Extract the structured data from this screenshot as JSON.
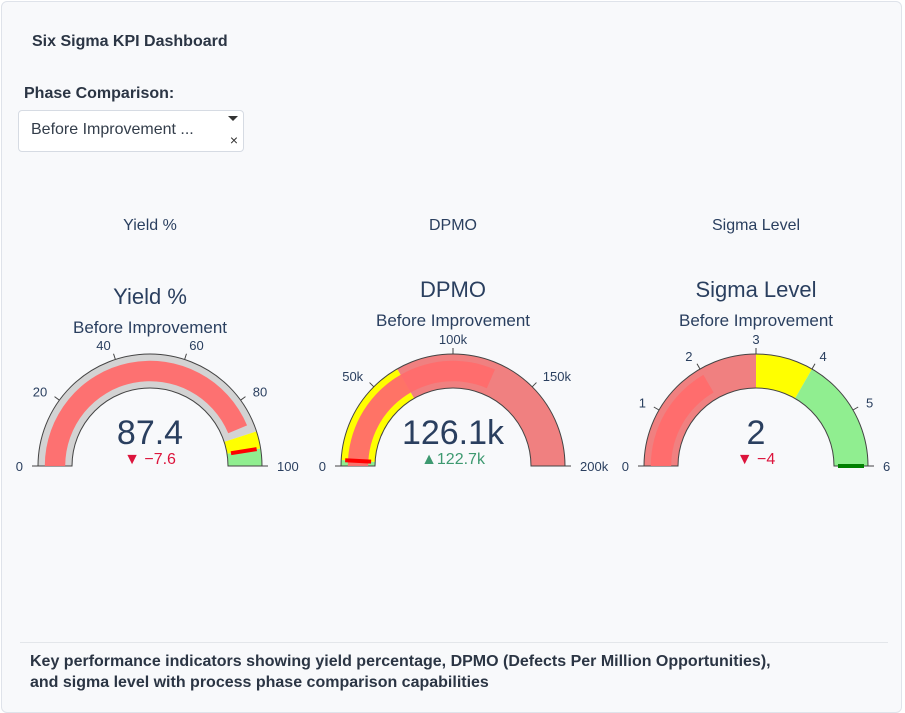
{
  "header": {
    "title": "Six Sigma KPI Dashboard"
  },
  "phase_selector": {
    "label": "Phase Comparison:",
    "selected": "Before Improvement ...",
    "caret_icon": "chevron-down-icon",
    "clear_icon": "×"
  },
  "caption": "Key performance indicators showing yield percentage, DPMO (Defects Per Million Opportunities), and sigma level with process phase comparison capabilities",
  "chart_data": {
    "type": "gauge",
    "subplot_titles": [
      "Yield %",
      "DPMO",
      "Sigma Level"
    ],
    "gauges": [
      {
        "title": "Yield %",
        "subtitle": "Before Improvement",
        "value": 87.4,
        "value_label": "87.4",
        "reference": 95,
        "delta": -7.6,
        "delta_label": "−7.6",
        "delta_direction": "down",
        "range": [
          0,
          100
        ],
        "ticks": [
          0,
          20,
          40,
          60,
          80,
          100
        ],
        "tick_labels": [
          "0",
          "20",
          "40",
          "60",
          "80",
          "100"
        ],
        "bar_color": "#ff6b6b",
        "steps": [
          {
            "range": [
              0,
              90
            ],
            "color": "#d3d3d3"
          },
          {
            "range": [
              90,
              95
            ],
            "color": "#ffff00"
          },
          {
            "range": [
              95,
              100
            ],
            "color": "#90ee90"
          }
        ],
        "threshold": {
          "value": 95,
          "color": "#ff0000"
        }
      },
      {
        "title": "DPMO",
        "subtitle": "Before Improvement",
        "value": 126100,
        "value_label": "126.1k",
        "reference": 3400,
        "delta": 122700,
        "delta_label": "122.7k",
        "delta_direction": "up",
        "range": [
          0,
          200000
        ],
        "ticks": [
          0,
          50000,
          100000,
          150000,
          200000
        ],
        "tick_labels": [
          "0",
          "50k",
          "100k",
          "150k",
          "200k"
        ],
        "bar_color": "#ff6b6b",
        "steps": [
          {
            "range": [
              0,
              3400
            ],
            "color": "#90ee90"
          },
          {
            "range": [
              3400,
              66800
            ],
            "color": "#ffff00"
          },
          {
            "range": [
              66800,
              200000
            ],
            "color": "#f08080"
          }
        ],
        "threshold": {
          "value": 3400,
          "color": "#ff0000"
        }
      },
      {
        "title": "Sigma Level",
        "subtitle": "Before Improvement",
        "value": 2,
        "value_label": "2",
        "reference": 6,
        "delta": -4,
        "delta_label": "−4",
        "delta_direction": "down",
        "range": [
          0,
          6
        ],
        "ticks": [
          0,
          1,
          2,
          3,
          4,
          5,
          6
        ],
        "tick_labels": [
          "0",
          "1",
          "2",
          "3",
          "4",
          "5",
          "6"
        ],
        "bar_color": "#ff6b6b",
        "steps": [
          {
            "range": [
              0,
              3
            ],
            "color": "#f08080"
          },
          {
            "range": [
              3,
              4
            ],
            "color": "#ffff00"
          },
          {
            "range": [
              4,
              6
            ],
            "color": "#90ee90"
          }
        ],
        "threshold": {
          "value": 6,
          "color": "#008000"
        }
      }
    ],
    "colors": {
      "increasing": "#3d9970",
      "decreasing": "#dc143c",
      "text": "#2a3f5f"
    }
  }
}
